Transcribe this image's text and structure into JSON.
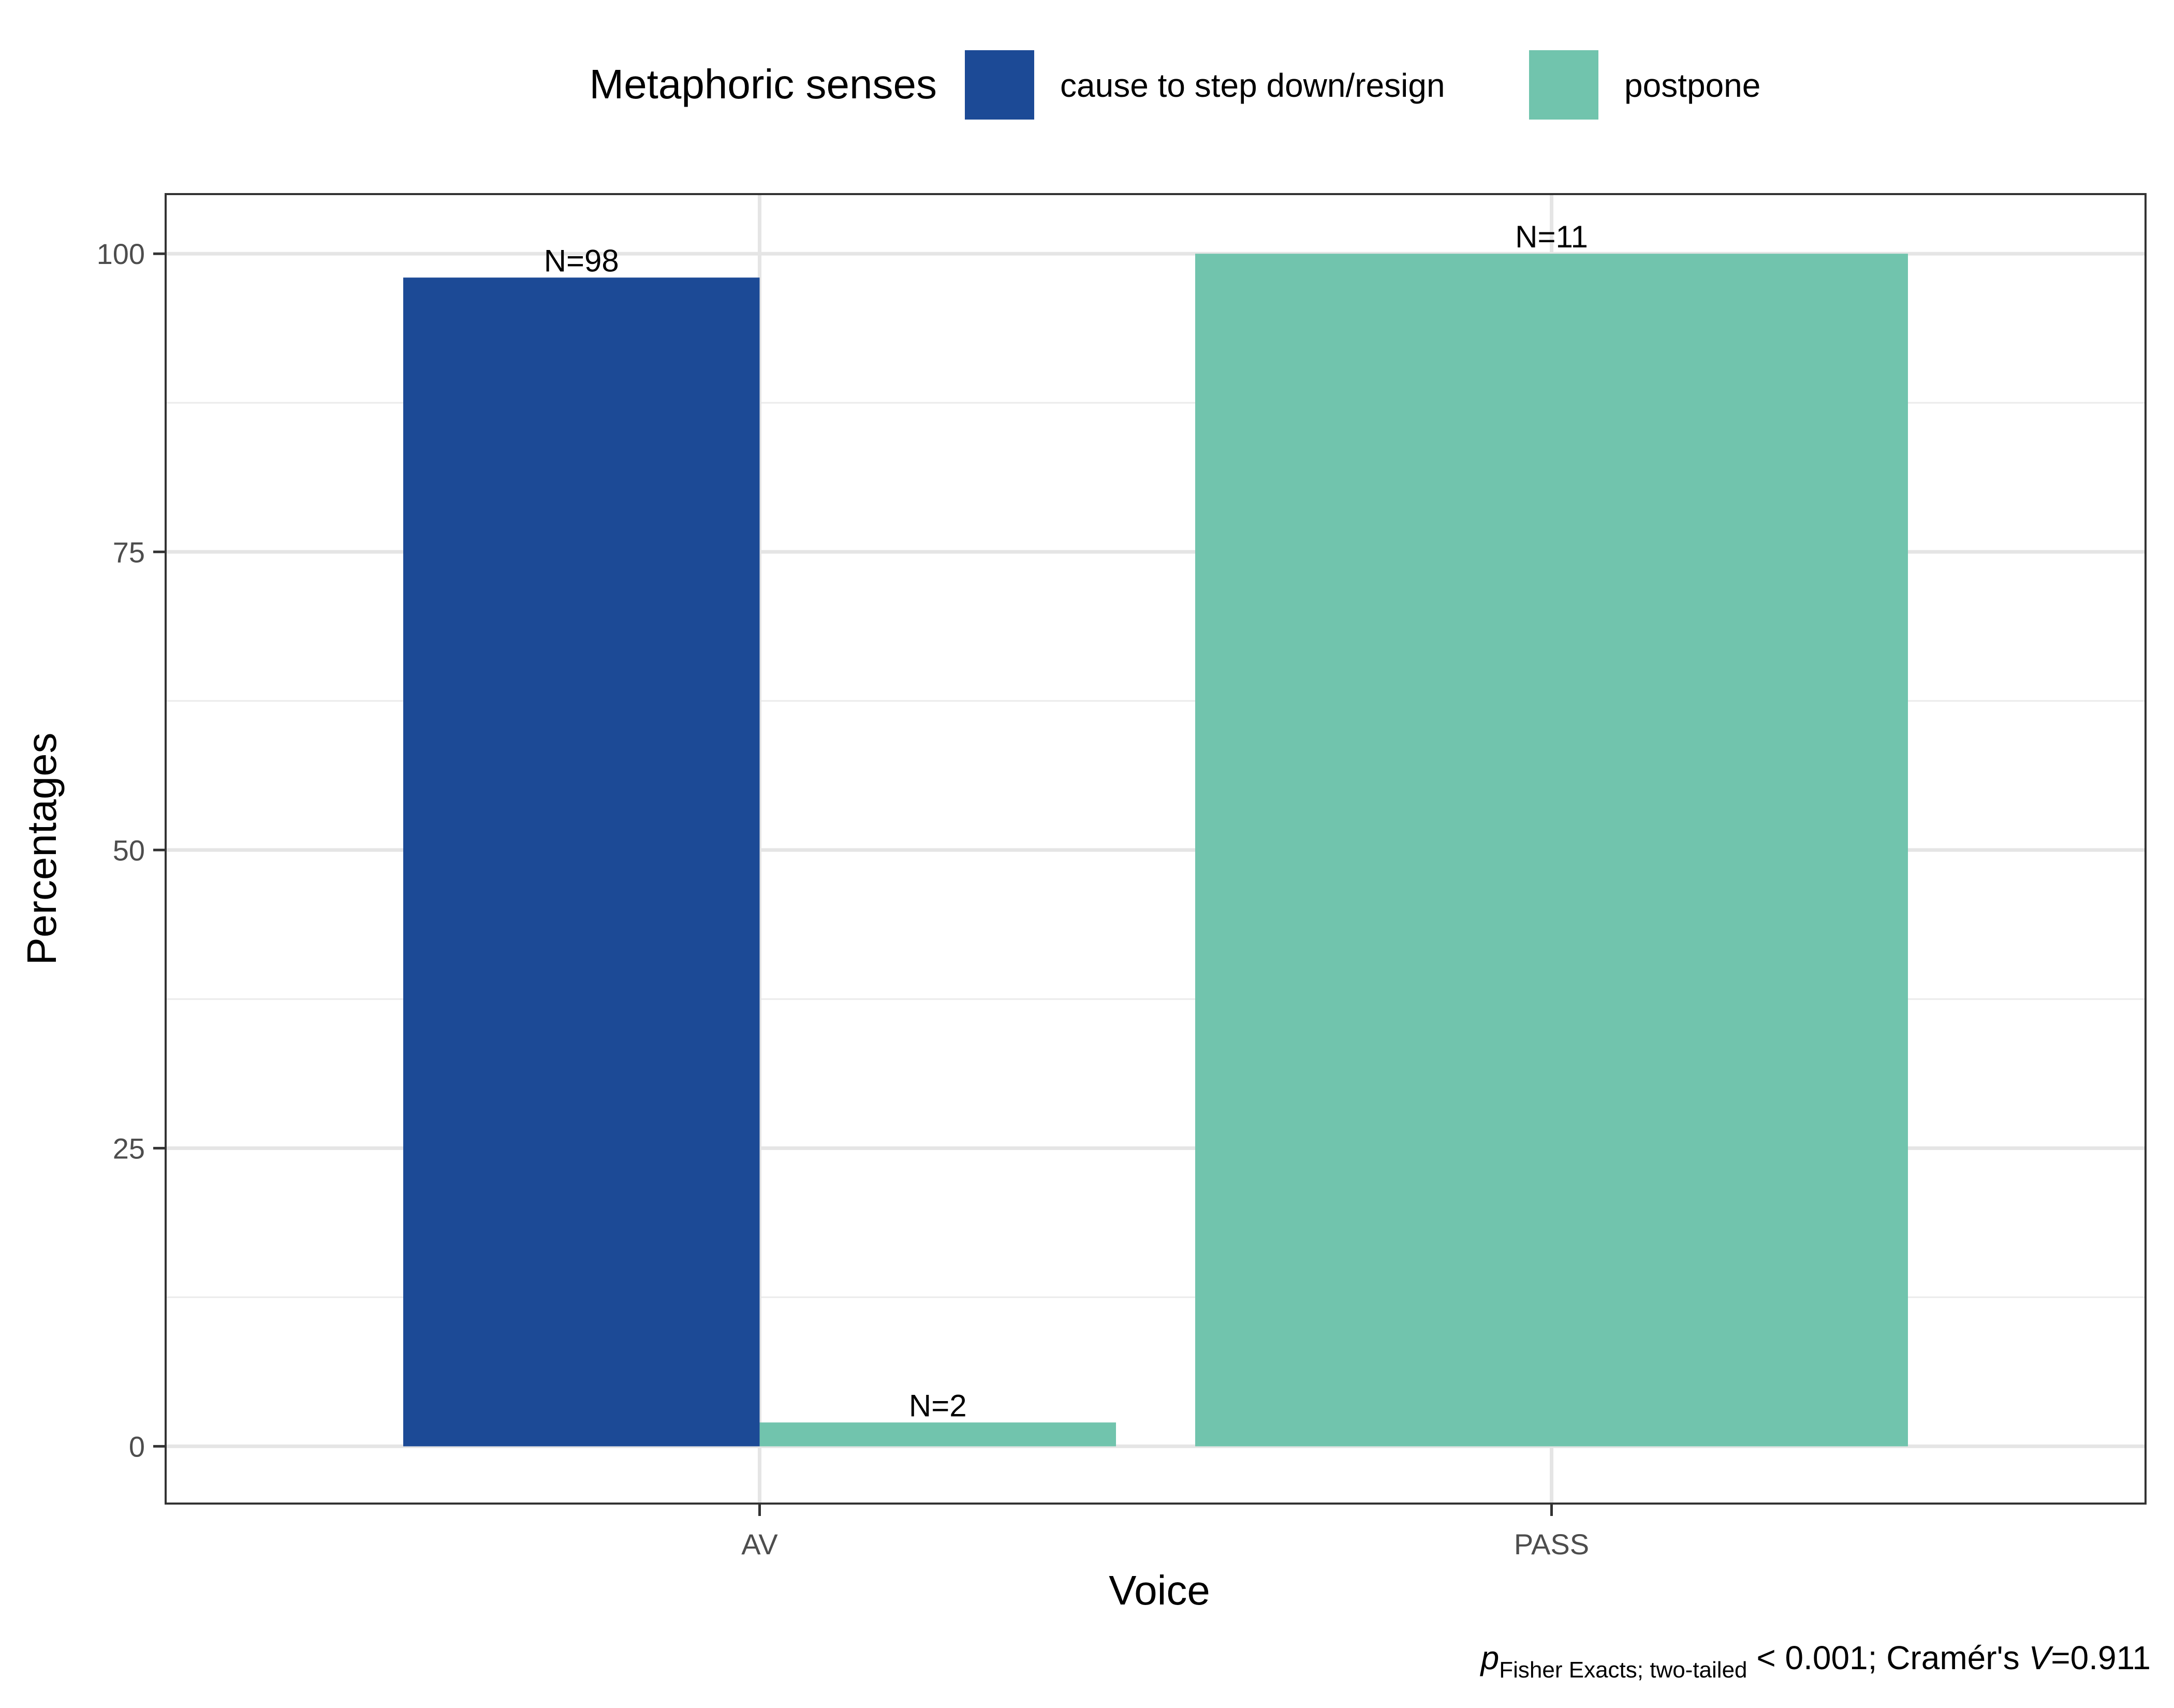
{
  "chart_data": {
    "type": "bar",
    "title": "",
    "xlabel": "Voice",
    "ylabel": "Percentages",
    "categories": [
      "AV",
      "PASS"
    ],
    "series": [
      {
        "name": "cause to step down/resign",
        "color": "#1c4a96",
        "values": [
          98,
          null
        ],
        "labels": [
          "N=98",
          ""
        ]
      },
      {
        "name": "postpone",
        "color": "#71c4ad",
        "values": [
          2,
          100
        ],
        "labels": [
          "N=2",
          "N=11"
        ]
      }
    ],
    "ylim": [
      -4.8,
      105
    ],
    "yticks": [
      0,
      25,
      50,
      75,
      100
    ],
    "y_minor_ticks": [
      12.5,
      37.5,
      62.5,
      87.5
    ],
    "grid": true,
    "legend": {
      "title": "Metaphoric senses",
      "position": "top"
    },
    "caption": {
      "p_symbol": "p",
      "p_subscript": "Fisher Exacts; two-tailed",
      "text": " < 0.001; Cramér's ",
      "v_symbol": "V",
      "v_value": "=0.911"
    }
  }
}
